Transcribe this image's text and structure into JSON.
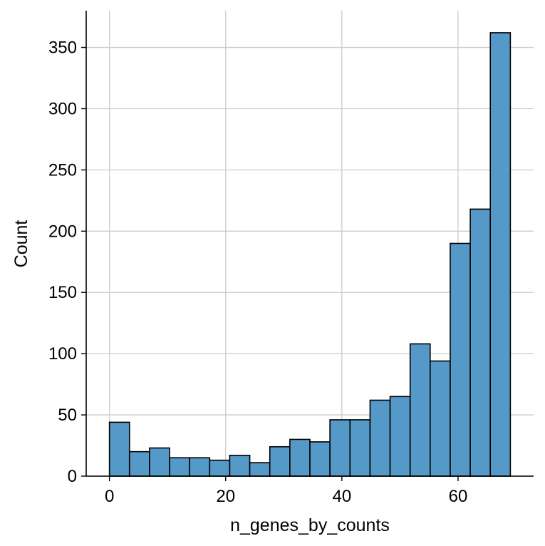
{
  "chart_data": {
    "type": "bar",
    "xlabel": "n_genes_by_counts",
    "ylabel": "Count",
    "xlim": [
      -4,
      73
    ],
    "ylim": [
      0,
      380
    ],
    "xticks": [
      0,
      20,
      40,
      60
    ],
    "yticks": [
      0,
      50,
      100,
      150,
      200,
      250,
      300,
      350
    ],
    "grid": true,
    "bar_color": "#5599c8",
    "bins": [
      {
        "x0": 0.0,
        "x1": 3.45,
        "count": 44
      },
      {
        "x0": 3.45,
        "x1": 6.9,
        "count": 20
      },
      {
        "x0": 6.9,
        "x1": 10.35,
        "count": 23
      },
      {
        "x0": 10.35,
        "x1": 13.8,
        "count": 15
      },
      {
        "x0": 13.8,
        "x1": 17.25,
        "count": 15
      },
      {
        "x0": 17.25,
        "x1": 20.7,
        "count": 13
      },
      {
        "x0": 20.7,
        "x1": 24.15,
        "count": 17
      },
      {
        "x0": 24.15,
        "x1": 27.6,
        "count": 11
      },
      {
        "x0": 27.6,
        "x1": 31.05,
        "count": 24
      },
      {
        "x0": 31.05,
        "x1": 34.5,
        "count": 30
      },
      {
        "x0": 34.5,
        "x1": 37.95,
        "count": 28
      },
      {
        "x0": 37.95,
        "x1": 41.4,
        "count": 46
      },
      {
        "x0": 41.4,
        "x1": 44.85,
        "count": 46
      },
      {
        "x0": 44.85,
        "x1": 48.3,
        "count": 62
      },
      {
        "x0": 48.3,
        "x1": 51.75,
        "count": 65
      },
      {
        "x0": 51.75,
        "x1": 55.2,
        "count": 108
      },
      {
        "x0": 55.2,
        "x1": 58.65,
        "count": 94
      },
      {
        "x0": 58.65,
        "x1": 62.1,
        "count": 190
      },
      {
        "x0": 62.1,
        "x1": 65.55,
        "count": 218
      },
      {
        "x0": 65.55,
        "x1": 69.0,
        "count": 362
      }
    ]
  }
}
